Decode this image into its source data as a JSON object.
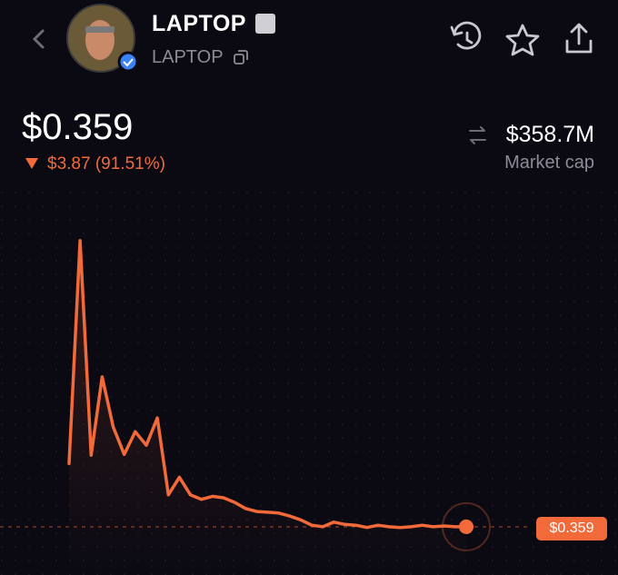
{
  "header": {
    "name": "LAPTOP",
    "ticker": "LAPTOP"
  },
  "price": {
    "current": "$0.359",
    "change": "$3.87 (91.51%)"
  },
  "market_cap": {
    "value": "$358.7M",
    "label": "Market cap"
  },
  "chart_data": {
    "type": "line",
    "color": "#f26a3a",
    "ylim": [
      0,
      4.8
    ],
    "values": [
      1.19,
      4.12,
      1.3,
      2.33,
      1.67,
      1.31,
      1.61,
      1.43,
      1.79,
      0.78,
      1.01,
      0.78,
      0.72,
      0.76,
      0.74,
      0.68,
      0.6,
      0.56,
      0.55,
      0.54,
      0.5,
      0.45,
      0.38,
      0.36,
      0.42,
      0.39,
      0.38,
      0.35,
      0.38,
      0.36,
      0.35,
      0.36,
      0.38,
      0.36,
      0.37,
      0.36,
      0.359
    ]
  }
}
